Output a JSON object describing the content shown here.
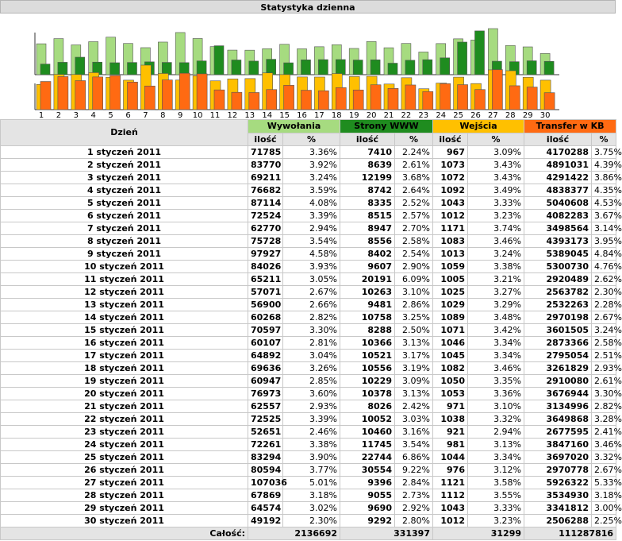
{
  "title": "Statystyka dzienna",
  "colors": {
    "wywolania": "#a6db80",
    "strony": "#1f8c1f",
    "wejscia": "#ffc000",
    "transfer": "#ff6a12"
  },
  "headers": {
    "day": "Dzień",
    "wywolania": "Wywołania",
    "strony": "Strony WWW",
    "wejscia": "Wejścia",
    "transfer": "Transfer w KB",
    "ilosc": "ilość",
    "pct": "%"
  },
  "totals": {
    "label": "Całość:",
    "wywolania": "2136692",
    "strony": "331397",
    "wejscia": "31299",
    "transfer": "111287816"
  },
  "rows": [
    {
      "day": "1 styczeń 2011",
      "wyw": 71785,
      "wyw_p": "3.36%",
      "www": 7410,
      "www_p": "2.24%",
      "wej": 967,
      "wej_p": "3.09%",
      "tr": 4170288,
      "tr_p": "3.75%"
    },
    {
      "day": "2 styczeń 2011",
      "wyw": 83770,
      "wyw_p": "3.92%",
      "www": 8639,
      "www_p": "2.61%",
      "wej": 1073,
      "wej_p": "3.43%",
      "tr": 4891031,
      "tr_p": "4.39%"
    },
    {
      "day": "3 styczeń 2011",
      "wyw": 69211,
      "wyw_p": "3.24%",
      "www": 12199,
      "www_p": "3.68%",
      "wej": 1072,
      "wej_p": "3.43%",
      "tr": 4291422,
      "tr_p": "3.86%"
    },
    {
      "day": "4 styczeń 2011",
      "wyw": 76682,
      "wyw_p": "3.59%",
      "www": 8742,
      "www_p": "2.64%",
      "wej": 1092,
      "wej_p": "3.49%",
      "tr": 4838377,
      "tr_p": "4.35%"
    },
    {
      "day": "5 styczeń 2011",
      "wyw": 87114,
      "wyw_p": "4.08%",
      "www": 8335,
      "www_p": "2.52%",
      "wej": 1043,
      "wej_p": "3.33%",
      "tr": 5040608,
      "tr_p": "4.53%"
    },
    {
      "day": "6 styczeń 2011",
      "wyw": 72524,
      "wyw_p": "3.39%",
      "www": 8515,
      "www_p": "2.57%",
      "wej": 1012,
      "wej_p": "3.23%",
      "tr": 4082283,
      "tr_p": "3.67%"
    },
    {
      "day": "7 styczeń 2011",
      "wyw": 62770,
      "wyw_p": "2.94%",
      "www": 8947,
      "www_p": "2.70%",
      "wej": 1171,
      "wej_p": "3.74%",
      "tr": 3498564,
      "tr_p": "3.14%"
    },
    {
      "day": "8 styczeń 2011",
      "wyw": 75728,
      "wyw_p": "3.54%",
      "www": 8556,
      "www_p": "2.58%",
      "wej": 1083,
      "wej_p": "3.46%",
      "tr": 4393173,
      "tr_p": "3.95%"
    },
    {
      "day": "9 styczeń 2011",
      "wyw": 97927,
      "wyw_p": "4.58%",
      "www": 8402,
      "www_p": "2.54%",
      "wej": 1013,
      "wej_p": "3.24%",
      "tr": 5389045,
      "tr_p": "4.84%"
    },
    {
      "day": "10 styczeń 2011",
      "wyw": 84026,
      "wyw_p": "3.93%",
      "www": 9607,
      "www_p": "2.90%",
      "wej": 1059,
      "wej_p": "3.38%",
      "tr": 5300730,
      "tr_p": "4.76%"
    },
    {
      "day": "11 styczeń 2011",
      "wyw": 65211,
      "wyw_p": "3.05%",
      "www": 20191,
      "www_p": "6.09%",
      "wej": 1005,
      "wej_p": "3.21%",
      "tr": 2920489,
      "tr_p": "2.62%"
    },
    {
      "day": "12 styczeń 2011",
      "wyw": 57071,
      "wyw_p": "2.67%",
      "www": 10263,
      "www_p": "3.10%",
      "wej": 1025,
      "wej_p": "3.27%",
      "tr": 2563782,
      "tr_p": "2.30%"
    },
    {
      "day": "13 styczeń 2011",
      "wyw": 56900,
      "wyw_p": "2.66%",
      "www": 9481,
      "www_p": "2.86%",
      "wej": 1029,
      "wej_p": "3.29%",
      "tr": 2532263,
      "tr_p": "2.28%"
    },
    {
      "day": "14 styczeń 2011",
      "wyw": 60268,
      "wyw_p": "2.82%",
      "www": 10758,
      "www_p": "3.25%",
      "wej": 1089,
      "wej_p": "3.48%",
      "tr": 2970198,
      "tr_p": "2.67%"
    },
    {
      "day": "15 styczeń 2011",
      "wyw": 70597,
      "wyw_p": "3.30%",
      "www": 8288,
      "www_p": "2.50%",
      "wej": 1071,
      "wej_p": "3.42%",
      "tr": 3601505,
      "tr_p": "3.24%"
    },
    {
      "day": "16 styczeń 2011",
      "wyw": 60107,
      "wyw_p": "2.81%",
      "www": 10366,
      "www_p": "3.13%",
      "wej": 1046,
      "wej_p": "3.34%",
      "tr": 2873366,
      "tr_p": "2.58%"
    },
    {
      "day": "17 styczeń 2011",
      "wyw": 64892,
      "wyw_p": "3.04%",
      "www": 10521,
      "www_p": "3.17%",
      "wej": 1045,
      "wej_p": "3.34%",
      "tr": 2795054,
      "tr_p": "2.51%"
    },
    {
      "day": "18 styczeń 2011",
      "wyw": 69636,
      "wyw_p": "3.26%",
      "www": 10556,
      "www_p": "3.19%",
      "wej": 1082,
      "wej_p": "3.46%",
      "tr": 3261829,
      "tr_p": "2.93%"
    },
    {
      "day": "19 styczeń 2011",
      "wyw": 60947,
      "wyw_p": "2.85%",
      "www": 10229,
      "www_p": "3.09%",
      "wej": 1050,
      "wej_p": "3.35%",
      "tr": 2910080,
      "tr_p": "2.61%"
    },
    {
      "day": "20 styczeń 2011",
      "wyw": 76973,
      "wyw_p": "3.60%",
      "www": 10378,
      "www_p": "3.13%",
      "wej": 1053,
      "wej_p": "3.36%",
      "tr": 3676944,
      "tr_p": "3.30%"
    },
    {
      "day": "21 styczeń 2011",
      "wyw": 62557,
      "wyw_p": "2.93%",
      "www": 8026,
      "www_p": "2.42%",
      "wej": 971,
      "wej_p": "3.10%",
      "tr": 3134996,
      "tr_p": "2.82%"
    },
    {
      "day": "22 styczeń 2011",
      "wyw": 72525,
      "wyw_p": "3.39%",
      "www": 10052,
      "www_p": "3.03%",
      "wej": 1038,
      "wej_p": "3.32%",
      "tr": 3649868,
      "tr_p": "3.28%"
    },
    {
      "day": "23 styczeń 2011",
      "wyw": 52651,
      "wyw_p": "2.46%",
      "www": 10460,
      "www_p": "3.16%",
      "wej": 921,
      "wej_p": "2.94%",
      "tr": 2677595,
      "tr_p": "2.41%"
    },
    {
      "day": "24 styczeń 2011",
      "wyw": 72261,
      "wyw_p": "3.38%",
      "www": 11745,
      "www_p": "3.54%",
      "wej": 981,
      "wej_p": "3.13%",
      "tr": 3847160,
      "tr_p": "3.46%"
    },
    {
      "day": "25 styczeń 2011",
      "wyw": 83294,
      "wyw_p": "3.90%",
      "www": 22744,
      "www_p": "6.86%",
      "wej": 1044,
      "wej_p": "3.34%",
      "tr": 3697020,
      "tr_p": "3.32%"
    },
    {
      "day": "26 styczeń 2011",
      "wyw": 80594,
      "wyw_p": "3.77%",
      "www": 30554,
      "www_p": "9.22%",
      "wej": 976,
      "wej_p": "3.12%",
      "tr": 2970778,
      "tr_p": "2.67%"
    },
    {
      "day": "27 styczeń 2011",
      "wyw": 107036,
      "wyw_p": "5.01%",
      "www": 9396,
      "www_p": "2.84%",
      "wej": 1121,
      "wej_p": "3.58%",
      "tr": 5926322,
      "tr_p": "5.33%"
    },
    {
      "day": "28 styczeń 2011",
      "wyw": 67869,
      "wyw_p": "3.18%",
      "www": 9055,
      "www_p": "2.73%",
      "wej": 1112,
      "wej_p": "3.55%",
      "tr": 3534930,
      "tr_p": "3.18%"
    },
    {
      "day": "29 styczeń 2011",
      "wyw": 64574,
      "wyw_p": "3.02%",
      "www": 9690,
      "www_p": "2.92%",
      "wej": 1043,
      "wej_p": "3.33%",
      "tr": 3341812,
      "tr_p": "3.00%"
    },
    {
      "day": "30 styczeń 2011",
      "wyw": 49192,
      "wyw_p": "2.30%",
      "www": 9292,
      "www_p": "2.80%",
      "wej": 1012,
      "wej_p": "3.23%",
      "tr": 2506288,
      "tr_p": "2.25%"
    }
  ],
  "chart_data": {
    "type": "bar",
    "categories": [
      "1",
      "2",
      "3",
      "4",
      "5",
      "6",
      "7",
      "8",
      "9",
      "10",
      "11",
      "12",
      "13",
      "14",
      "15",
      "16",
      "17",
      "18",
      "19",
      "20",
      "21",
      "22",
      "23",
      "24",
      "25",
      "26",
      "27",
      "28",
      "29",
      "30"
    ],
    "series": [
      {
        "name": "Wywołania",
        "values": [
          71785,
          83770,
          69211,
          76682,
          87114,
          72524,
          62770,
          75728,
          97927,
          84026,
          65211,
          57071,
          56900,
          60268,
          70597,
          60107,
          64892,
          69636,
          60947,
          76973,
          62557,
          72525,
          52651,
          72261,
          83294,
          80594,
          107036,
          67869,
          64574,
          49192
        ]
      },
      {
        "name": "Strony WWW",
        "values": [
          7410,
          8639,
          12199,
          8742,
          8335,
          8515,
          8947,
          8556,
          8402,
          9607,
          20191,
          10263,
          9481,
          10758,
          8288,
          10366,
          10521,
          10556,
          10229,
          10378,
          8026,
          10052,
          10460,
          11745,
          22744,
          30554,
          9396,
          9055,
          9690,
          9292
        ]
      },
      {
        "name": "Wejścia",
        "values": [
          967,
          1073,
          1072,
          1092,
          1043,
          1012,
          1171,
          1083,
          1013,
          1059,
          1005,
          1025,
          1029,
          1089,
          1071,
          1046,
          1045,
          1082,
          1050,
          1053,
          971,
          1038,
          921,
          981,
          1044,
          976,
          1121,
          1112,
          1043,
          1012
        ]
      },
      {
        "name": "Transfer w KB",
        "values": [
          4170288,
          4891031,
          4291422,
          4838377,
          5040608,
          4082283,
          3498564,
          4393173,
          5389045,
          5300730,
          2920489,
          2563782,
          2532263,
          2970198,
          3601505,
          2873366,
          2795054,
          3261829,
          2910080,
          3676944,
          3134996,
          3649868,
          2677595,
          3847160,
          3697020,
          2970778,
          5926322,
          3534930,
          3341812,
          2506288
        ]
      }
    ]
  }
}
